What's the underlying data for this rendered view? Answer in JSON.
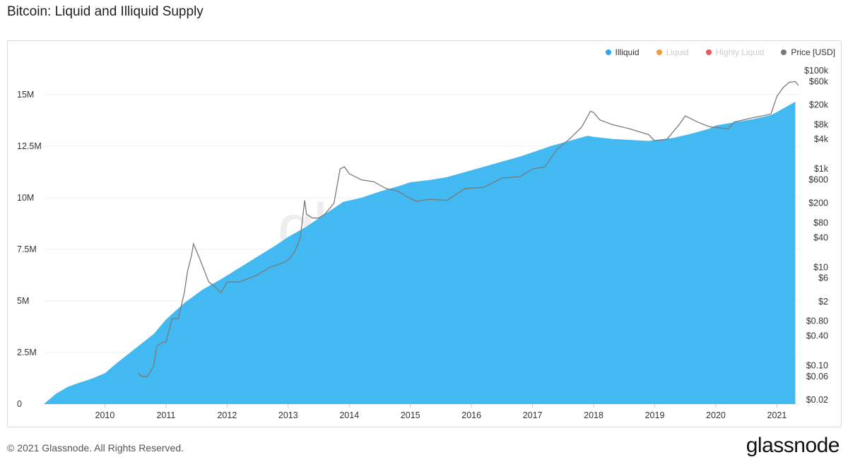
{
  "title": "Bitcoin: Liquid and Illiquid Supply",
  "footer": "© 2021 Glassnode. All Rights Reserved.",
  "brand": "glassnode",
  "watermark": "glassnode",
  "colors": {
    "illiquid": "#42b9f0",
    "liquid": "#f39c3c",
    "highly_liquid": "#f2545b",
    "price": "#7a7a7a"
  },
  "legend": [
    {
      "label": "Illiquid",
      "color": "#29a7ef",
      "active": true
    },
    {
      "label": "Liquid",
      "color": "#f39c3c",
      "active": false
    },
    {
      "label": "Highly Liquid",
      "color": "#f2545b",
      "active": false
    },
    {
      "label": "Price [USD]",
      "color": "#777777",
      "active": true
    }
  ],
  "chart_data": {
    "type": "area",
    "title": "Bitcoin: Liquid and Illiquid Supply",
    "xlabel": "",
    "ylabel": "",
    "xlim": [
      2009.0,
      2021.4
    ],
    "x_ticks": [
      "2010",
      "2011",
      "2012",
      "2013",
      "2014",
      "2015",
      "2016",
      "2017",
      "2018",
      "2019",
      "2020",
      "2021"
    ],
    "y_left": {
      "ylim": [
        0,
        16500000
      ],
      "tick_labels": [
        "0",
        "2.5M",
        "5M",
        "7.5M",
        "10M",
        "12.5M",
        "15M"
      ],
      "tick_values": [
        0,
        2500000,
        5000000,
        7500000,
        10000000,
        12500000,
        15000000
      ]
    },
    "y_right": {
      "scale": "log",
      "ylim": [
        0.02,
        100000
      ],
      "tick_labels": [
        "$0.02",
        "$0.06",
        "$0.10",
        "$0.40",
        "$0.80",
        "$2",
        "$6",
        "$10",
        "$40",
        "$80",
        "$200",
        "$600",
        "$1k",
        "$4k",
        "$8k",
        "$20k",
        "$60k",
        "$100k"
      ],
      "tick_values": [
        0.02,
        0.06,
        0.1,
        0.4,
        0.8,
        2,
        6,
        10,
        40,
        80,
        200,
        600,
        1000,
        4000,
        8000,
        20000,
        60000,
        100000
      ]
    },
    "series": [
      {
        "name": "Illiquid",
        "axis": "left",
        "x": [
          2009.0,
          2009.2,
          2009.4,
          2009.6,
          2009.8,
          2010.0,
          2010.2,
          2010.5,
          2010.8,
          2011.0,
          2011.3,
          2011.6,
          2011.9,
          2012.2,
          2012.5,
          2012.8,
          2013.0,
          2013.3,
          2013.6,
          2013.9,
          2014.2,
          2014.5,
          2014.8,
          2015.0,
          2015.3,
          2015.6,
          2015.9,
          2016.2,
          2016.5,
          2016.8,
          2017.0,
          2017.3,
          2017.6,
          2017.9,
          2018.0,
          2018.3,
          2018.6,
          2018.9,
          2019.0,
          2019.3,
          2019.6,
          2019.9,
          2020.0,
          2020.3,
          2020.6,
          2020.9,
          2021.0,
          2021.3
        ],
        "values": [
          0,
          500000,
          850000,
          1050000,
          1250000,
          1500000,
          2000000,
          2700000,
          3400000,
          4100000,
          4900000,
          5550000,
          6050000,
          6600000,
          7150000,
          7700000,
          8100000,
          8600000,
          9200000,
          9800000,
          10000000,
          10300000,
          10550000,
          10750000,
          10850000,
          11000000,
          11250000,
          11500000,
          11750000,
          12000000,
          12200000,
          12500000,
          12750000,
          13000000,
          12950000,
          12850000,
          12800000,
          12750000,
          12800000,
          12900000,
          13100000,
          13350000,
          13500000,
          13650000,
          13800000,
          14000000,
          14150000,
          14650000
        ]
      },
      {
        "name": "Price [USD]",
        "axis": "right",
        "x": [
          2010.55,
          2010.6,
          2010.7,
          2010.8,
          2010.85,
          2010.95,
          2011.0,
          2011.1,
          2011.2,
          2011.3,
          2011.35,
          2011.42,
          2011.45,
          2011.55,
          2011.7,
          2011.8,
          2011.9,
          2012.0,
          2012.2,
          2012.5,
          2012.7,
          2012.9,
          2013.0,
          2013.1,
          2013.2,
          2013.27,
          2013.3,
          2013.4,
          2013.5,
          2013.6,
          2013.75,
          2013.85,
          2013.92,
          2014.0,
          2014.2,
          2014.4,
          2014.6,
          2014.8,
          2015.0,
          2015.1,
          2015.3,
          2015.6,
          2015.9,
          2016.2,
          2016.5,
          2016.8,
          2017.0,
          2017.2,
          2017.4,
          2017.6,
          2017.8,
          2017.95,
          2018.0,
          2018.1,
          2018.3,
          2018.6,
          2018.9,
          2019.0,
          2019.2,
          2019.4,
          2019.5,
          2019.7,
          2019.9,
          2020.0,
          2020.2,
          2020.3,
          2020.6,
          2020.9,
          2021.0,
          2021.1,
          2021.2,
          2021.3,
          2021.35
        ],
        "values": [
          0.07,
          0.06,
          0.06,
          0.1,
          0.25,
          0.3,
          0.3,
          0.9,
          0.9,
          3,
          8,
          18,
          30,
          15,
          5,
          4,
          3,
          5,
          5,
          7,
          10,
          12,
          14,
          20,
          40,
          230,
          120,
          100,
          100,
          120,
          200,
          1000,
          1100,
          800,
          600,
          550,
          400,
          350,
          250,
          220,
          240,
          230,
          400,
          420,
          650,
          700,
          1000,
          1100,
          2500,
          4000,
          7000,
          15000,
          14000,
          10000,
          8000,
          6500,
          5000,
          3700,
          4000,
          8000,
          12000,
          9000,
          7200,
          7000,
          6500,
          9000,
          11000,
          13000,
          30000,
          45000,
          58000,
          60000,
          50000
        ]
      }
    ]
  }
}
